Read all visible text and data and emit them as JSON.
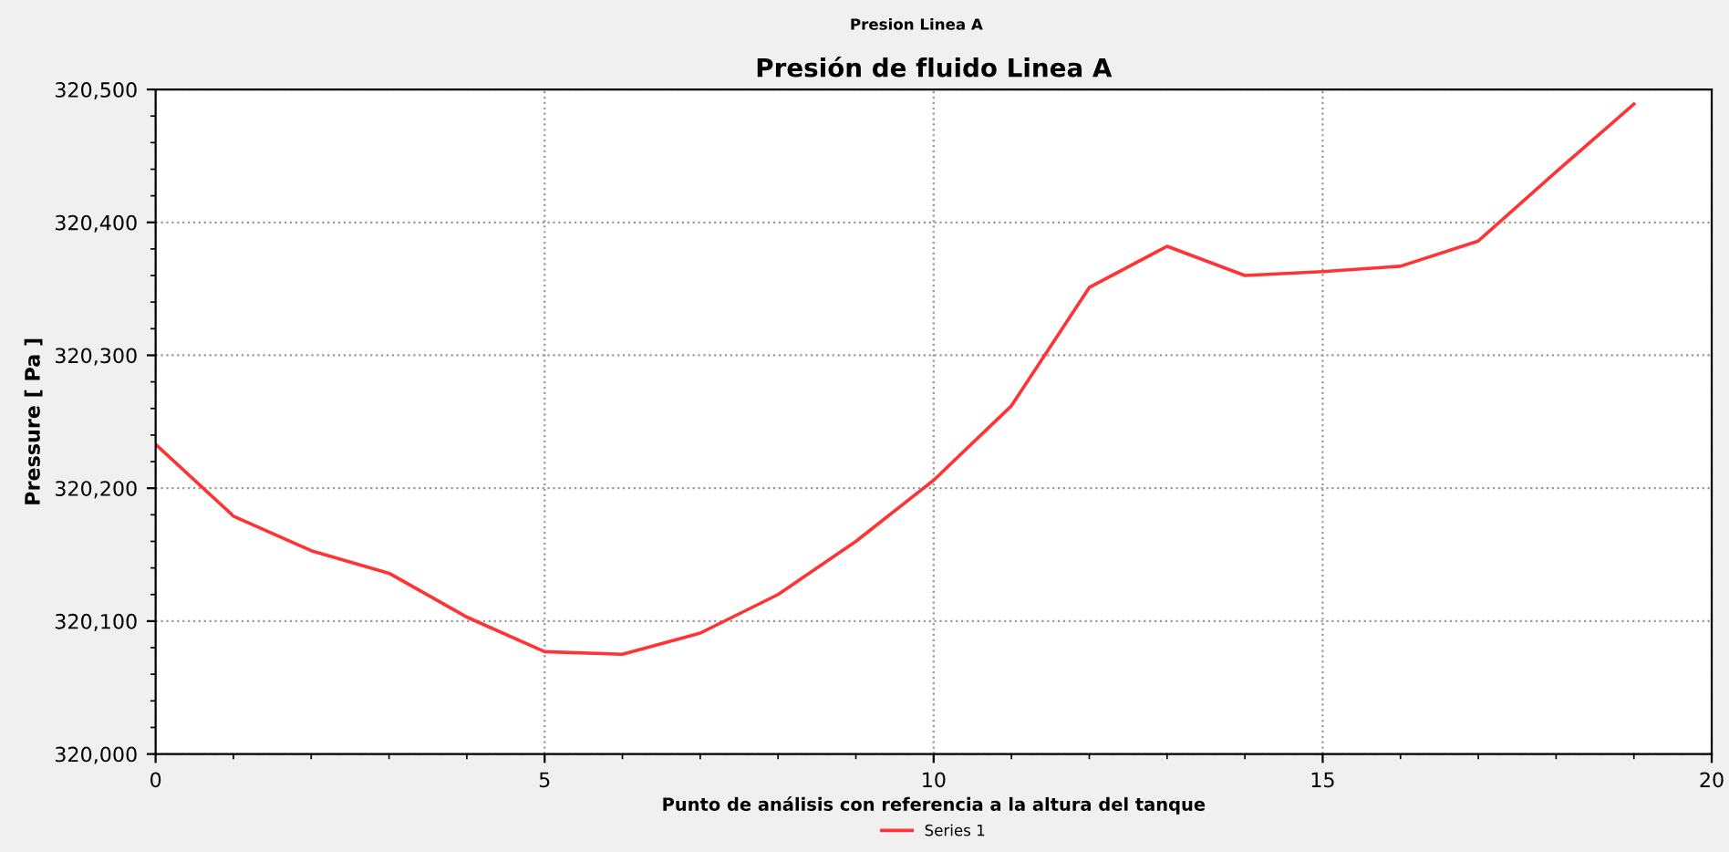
{
  "chart_data": {
    "type": "line",
    "title": "Presion Linea A",
    "subtitle": "Presión de fluido Linea A",
    "xlabel": "Punto de análisis con referencia a la altura del tanque",
    "ylabel": "Pressure [ Pa ]",
    "x": [
      0,
      1,
      2,
      3,
      4,
      5,
      6,
      7,
      8,
      9,
      10,
      11,
      12,
      13,
      14,
      15,
      16,
      17,
      18,
      19
    ],
    "series": [
      {
        "name": "Series 1",
        "color": "#ff3333",
        "values": [
          320233,
          320179,
          320153,
          320136,
          320103,
          320077,
          320075,
          320091,
          320120,
          320160,
          320206,
          320262,
          320351,
          320382,
          320360,
          320363,
          320367,
          320386,
          320438,
          320489
        ]
      }
    ],
    "xlim": [
      0,
      20
    ],
    "xticks": [
      0,
      5,
      10,
      15,
      20
    ],
    "ylim": [
      320000,
      320500
    ],
    "yticks": [
      {
        "value": 320000,
        "label": "320,000"
      },
      {
        "value": 320100,
        "label": "320,100"
      },
      {
        "value": 320200,
        "label": "320,200"
      },
      {
        "value": 320300,
        "label": "320,300"
      },
      {
        "value": 320400,
        "label": "320,400"
      },
      {
        "value": 320500,
        "label": "320,500"
      }
    ],
    "grid": true,
    "legend": "bottom",
    "marker": "none",
    "line_style": "solid"
  }
}
